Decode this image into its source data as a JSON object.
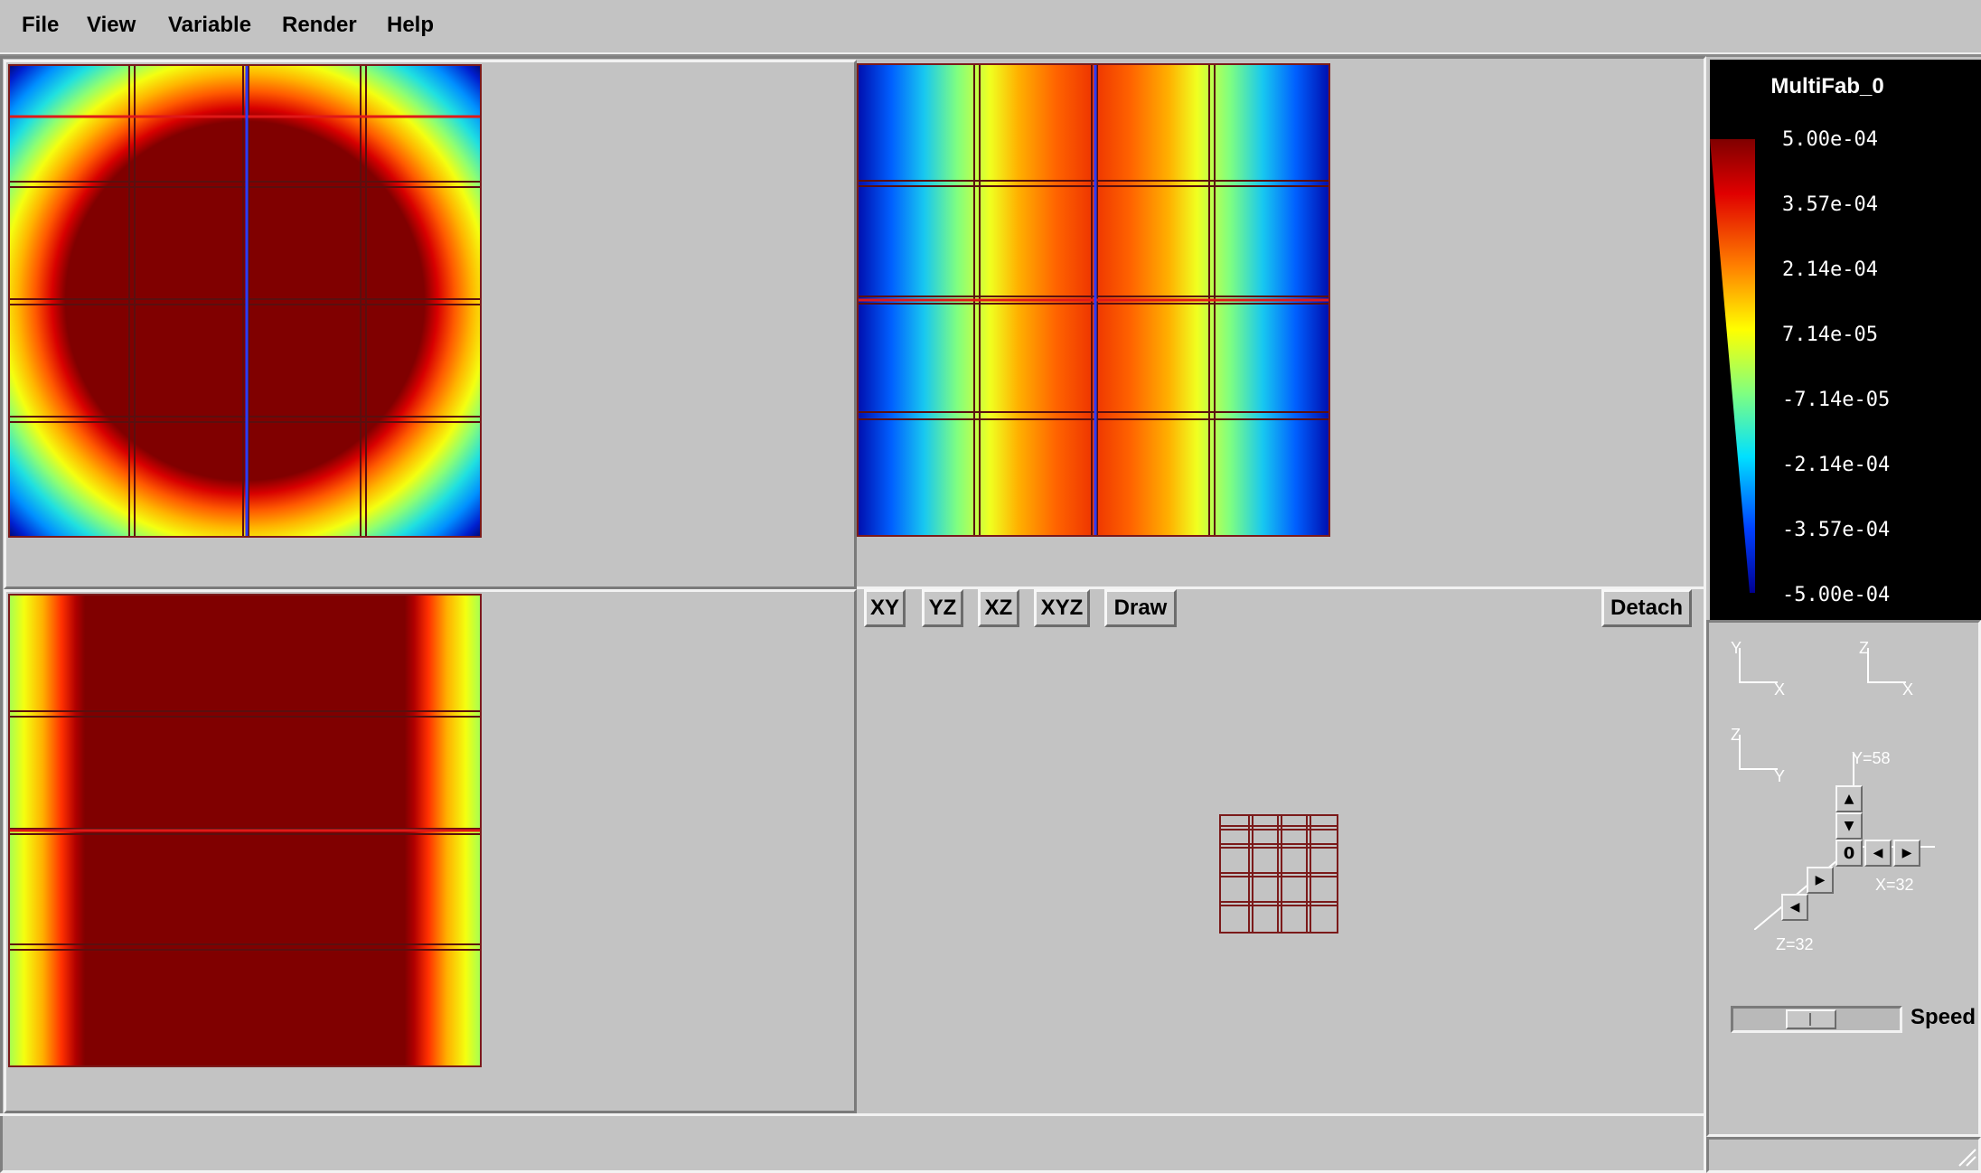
{
  "menu": {
    "file": "File",
    "view": "View",
    "variable": "Variable",
    "render": "Render",
    "help": "Help"
  },
  "toolbar": {
    "xy": "XY",
    "yz": "YZ",
    "xz": "XZ",
    "xyz": "XYZ",
    "draw": "Draw",
    "detach": "Detach"
  },
  "legend": {
    "title": "MultiFab_0",
    "labels": [
      "5.00e-04",
      "3.57e-04",
      "2.14e-04",
      "7.14e-05",
      "-7.14e-05",
      "-2.14e-04",
      "-3.57e-04",
      "-5.00e-04"
    ]
  },
  "orientation": {
    "xy": {
      "v": "Y",
      "h": "X"
    },
    "xz": {
      "v": "Z",
      "h": "X"
    },
    "yz": {
      "v": "Z",
      "h": "Y"
    }
  },
  "position": {
    "y_label": "Y=58",
    "x_label": "X=32",
    "z_label": "Z=32",
    "center_value": "0"
  },
  "speed": {
    "label": "Speed",
    "value": 0.45
  },
  "colors": {
    "bg": "#c3c3c3",
    "box_outline": "#7b1a1a",
    "slice_line_red": "#e01818",
    "slice_line_blue": "#2a3cff"
  }
}
